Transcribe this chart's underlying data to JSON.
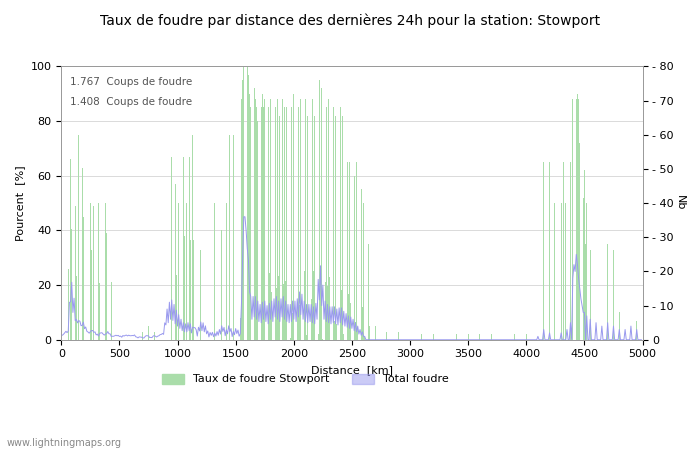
{
  "title": "Taux de foudre par distance des dernières 24h pour la station: Stowport",
  "xlabel": "Distance  [km]",
  "ylabel_left": "Pourcent  [%]",
  "ylabel_right": "Nb",
  "xlim": [
    0,
    5000
  ],
  "ylim_left": [
    0,
    100
  ],
  "ylim_right": [
    0,
    80
  ],
  "xticks": [
    0,
    500,
    1000,
    1500,
    2000,
    2500,
    3000,
    3500,
    4000,
    4500,
    5000
  ],
  "yticks_left": [
    0,
    20,
    40,
    60,
    80,
    100
  ],
  "yticks_right": [
    0,
    10,
    20,
    30,
    40,
    50,
    60,
    70,
    80
  ],
  "annotation1": "1.767  Coups de foudre",
  "annotation2": "1.408  Coups de foudre",
  "legend_green": "Taux de foudre Stowport",
  "legend_blue": "Total foudre",
  "watermark": "www.lightningmaps.org",
  "bar_color": "#aaddaa",
  "line_color": "#9999ee",
  "background_color": "#ffffff",
  "grid_color": "#cccccc",
  "title_fontsize": 10,
  "axis_fontsize": 8,
  "tick_fontsize": 8,
  "legend_fontsize": 8,
  "figsize": [
    7.0,
    4.5
  ],
  "dpi": 100
}
